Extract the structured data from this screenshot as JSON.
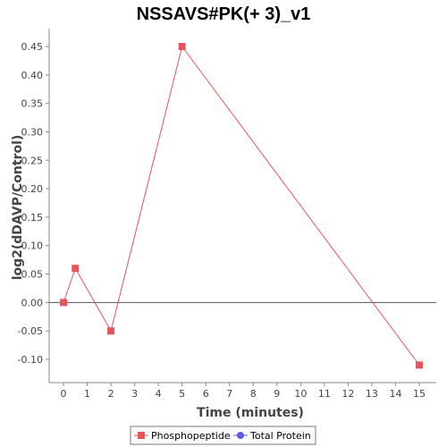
{
  "chart_data": {
    "type": "line",
    "title": "NSSAVS#PK(+ 3)_v1",
    "xlabel": "Time (minutes)",
    "ylabel": "log2(dDAVP/Control)",
    "xlim": [
      0,
      15.6
    ],
    "ylim": [
      -0.135,
      0.48
    ],
    "xticks": [
      0,
      1,
      2,
      3,
      4,
      5,
      6,
      7,
      8,
      9,
      10,
      11,
      12,
      13,
      14,
      15
    ],
    "xtick_labels": [
      "0",
      "1",
      "2",
      "3",
      "4",
      "5",
      "6",
      "7",
      "8",
      "9",
      "10",
      "11",
      "12",
      "13",
      "14",
      "15"
    ],
    "yticks": [
      -0.1,
      -0.05,
      0.0,
      0.05,
      0.1,
      0.15,
      0.2,
      0.25,
      0.3,
      0.35,
      0.4,
      0.45
    ],
    "ytick_labels": [
      "-0.10",
      "-0.05",
      "0.00",
      "0.05",
      "0.10",
      "0.15",
      "0.20",
      "0.25",
      "0.30",
      "0.35",
      "0.40",
      "0.45"
    ],
    "zero_line": true,
    "grid": false,
    "legend_position": "bottom",
    "series": [
      {
        "name": "Phosphopeptide",
        "color": "#e8555a",
        "marker": "square",
        "x": [
          0,
          0.5,
          2,
          5,
          15
        ],
        "y": [
          0.0,
          0.06,
          -0.05,
          0.45,
          -0.11
        ]
      },
      {
        "name": "Total Protein",
        "color": "#5a5af0",
        "marker": "circle",
        "x": [],
        "y": []
      }
    ]
  }
}
